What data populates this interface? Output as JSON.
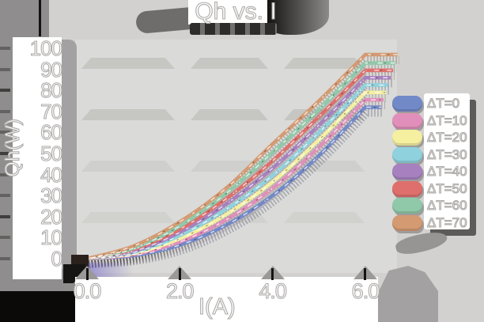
{
  "title": "Qh vs. I",
  "axes": {
    "x": {
      "label": "I(A)",
      "tick_labels": [
        "0.0",
        "2.0",
        "4.0",
        "6.0"
      ],
      "tick_values": [
        0,
        2,
        4,
        6
      ]
    },
    "y": {
      "label": "Qh(W)",
      "tick_labels": [
        "100",
        "90",
        "80",
        "70",
        "60",
        "50",
        "40",
        "30",
        "20",
        "10",
        "0"
      ],
      "tick_values": [
        100,
        90,
        80,
        70,
        60,
        50,
        40,
        30,
        20,
        10,
        0
      ]
    }
  },
  "legend": {
    "position": "right",
    "items": [
      {
        "label": "ΔT=0",
        "color": "#7289c8"
      },
      {
        "label": "ΔT=10",
        "color": "#e18fba"
      },
      {
        "label": "ΔT=20",
        "color": "#f5efa0"
      },
      {
        "label": "ΔT=30",
        "color": "#8fd2de"
      },
      {
        "label": "ΔT=40",
        "color": "#a781bf"
      },
      {
        "label": "ΔT=50",
        "color": "#df6f6c"
      },
      {
        "label": "ΔT=60",
        "color": "#8fc9a9"
      },
      {
        "label": "ΔT=70",
        "color": "#d49a72"
      }
    ]
  },
  "chart_data": {
    "type": "line",
    "title": "Qh vs. I",
    "xlabel": "I(A)",
    "ylabel": "Qh(W)",
    "xlim": [
      0,
      6.5
    ],
    "ylim": [
      0,
      100
    ],
    "grid": "faint horizontal bands near y=20, 44, 68, 93",
    "legend_position": "right",
    "x": [
      0,
      1,
      2,
      3,
      4,
      5,
      6
    ],
    "series": [
      {
        "name": "ΔT=0",
        "color": "#7289c8",
        "values": [
          0,
          1.5,
          6.5,
          16,
          30,
          49,
          72
        ]
      },
      {
        "name": "ΔT=10",
        "color": "#e18fba",
        "values": [
          0,
          2,
          8,
          18.5,
          33.5,
          53,
          75.5
        ]
      },
      {
        "name": "ΔT=20",
        "color": "#f5efa0",
        "values": [
          0,
          2.5,
          9.5,
          21,
          36.5,
          56.5,
          79
        ]
      },
      {
        "name": "ΔT=30",
        "color": "#8fd2de",
        "values": [
          0,
          3,
          11,
          23.5,
          39.5,
          60,
          82.5
        ]
      },
      {
        "name": "ΔT=40",
        "color": "#a781bf",
        "values": [
          0,
          3.5,
          12.5,
          26,
          43,
          63.5,
          86
        ]
      },
      {
        "name": "ΔT=50",
        "color": "#df6f6c",
        "values": [
          0,
          4.5,
          14,
          28.5,
          46.5,
          67.5,
          89.5
        ]
      },
      {
        "name": "ΔT=60",
        "color": "#8fc9a9",
        "values": [
          0,
          5,
          15.5,
          31,
          50.5,
          71,
          93
        ]
      },
      {
        "name": "ΔT=70",
        "color": "#d49a72",
        "values": [
          0,
          6,
          17.5,
          33.5,
          54.5,
          75,
          97
        ]
      }
    ]
  },
  "colors": {
    "background": "#d3d1cf",
    "plot_background": "#dadad8",
    "grid_band": "#c3c3c1",
    "label_strip": "#ffffff",
    "text_fill": "#ffffff",
    "text_outline": "#aeacaa"
  }
}
